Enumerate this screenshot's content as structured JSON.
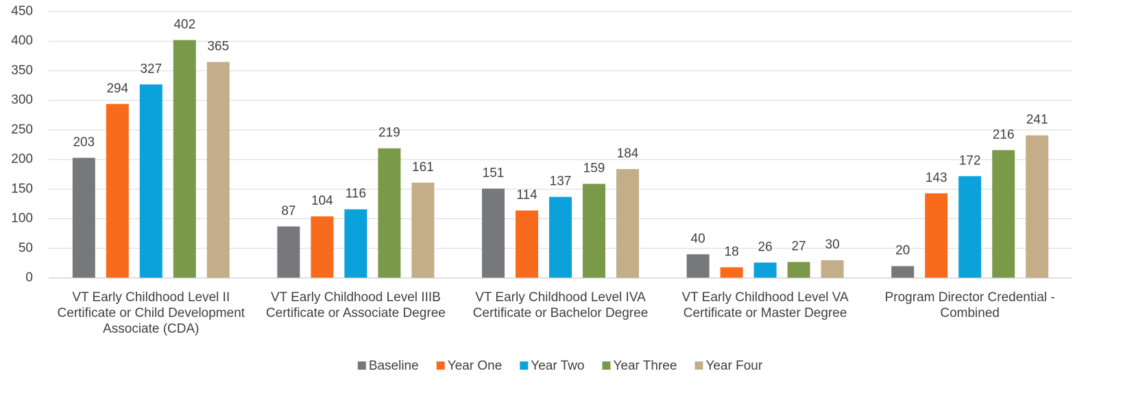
{
  "chart_data": {
    "type": "bar",
    "categories": [
      "VT Early Childhood Level II Certificate or Child Development Associate (CDA)",
      "VT Early Childhood Level IIIB Certificate or Associate Degree",
      "VT Early Childhood Level IVA Certificate or Bachelor Degree",
      "VT Early Childhood Level VA Certificate or Master Degree",
      "Program Director Credential - Combined"
    ],
    "series": [
      {
        "name": "Baseline",
        "color": "#77787b",
        "values": [
          203,
          87,
          151,
          40,
          20
        ]
      },
      {
        "name": "Year One",
        "color": "#f96b1c",
        "values": [
          294,
          104,
          114,
          18,
          143
        ]
      },
      {
        "name": "Year Two",
        "color": "#0ba2dc",
        "values": [
          327,
          116,
          137,
          26,
          172
        ]
      },
      {
        "name": "Year Three",
        "color": "#7a9a4a",
        "values": [
          402,
          219,
          159,
          27,
          216
        ]
      },
      {
        "name": "Year Four",
        "color": "#c4ae8a",
        "values": [
          365,
          161,
          184,
          30,
          241
        ]
      }
    ],
    "ylim": [
      0,
      450
    ],
    "yticks": [
      0,
      50,
      100,
      150,
      200,
      250,
      300,
      350,
      400,
      450
    ],
    "grid": true,
    "legend": "bottom"
  }
}
